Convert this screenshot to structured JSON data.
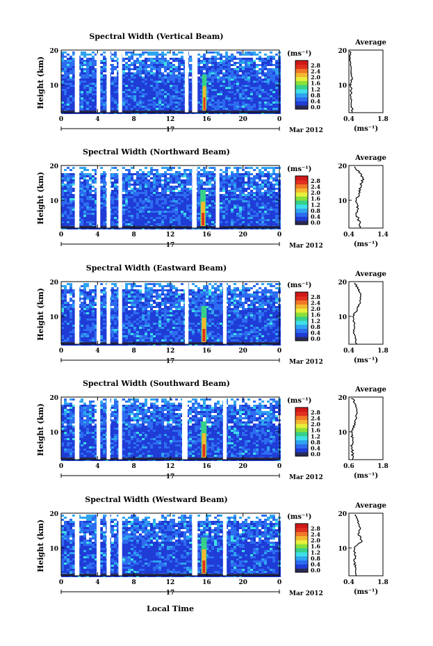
{
  "figure": {
    "xlabel": "Local Time",
    "date_label": "Mar 2012",
    "day_label": "17"
  },
  "colorbar": {
    "unit": "(ms⁻¹)",
    "ticks": [
      "0.0",
      "0.4",
      "0.8",
      "1.2",
      "1.6",
      "2.0",
      "2.4",
      "2.8"
    ],
    "colors": [
      "#2a2a55",
      "#1f3cd6",
      "#2d6cf0",
      "#2fa4f0",
      "#3fe0e8",
      "#36d08a",
      "#8ae03a",
      "#e8f03a",
      "#f4b830",
      "#f07828",
      "#e03020",
      "#d01818"
    ]
  },
  "chart_data": [
    {
      "type": "heatmap",
      "title": "Spectral Width (Vertical Beam)",
      "ylabel": "Height (km)",
      "xlim": [
        0,
        24
      ],
      "ylim": [
        2,
        20
      ],
      "xticks": [
        "0",
        "4",
        "8",
        "12",
        "16",
        "20",
        "0"
      ],
      "yticks": [
        "10",
        "20"
      ],
      "gaps_hours": [
        [
          1.5,
          2.0
        ],
        [
          3.9,
          4.3
        ],
        [
          5.0,
          5.4
        ],
        [
          6.3,
          6.7
        ],
        [
          13.6,
          14.0
        ],
        [
          14.4,
          15.0
        ]
      ],
      "hotspot_hours": [
        15.5,
        16.0
      ],
      "average": {
        "title": "Average",
        "xlabel": "(ms⁻¹)",
        "xlim": [
          0.4,
          1.8
        ],
        "xtick_labels": [
          "0.4",
          "1.8"
        ],
        "heights": [
          2,
          4,
          6,
          8,
          10,
          12,
          14,
          16,
          18,
          20
        ],
        "values": [
          0.55,
          0.52,
          0.48,
          0.5,
          0.47,
          0.52,
          0.46,
          0.48,
          0.45,
          0.44
        ]
      }
    },
    {
      "type": "heatmap",
      "title": "Spectral Width (Northward Beam)",
      "ylabel": "Height (km)",
      "xlim": [
        0,
        24
      ],
      "ylim": [
        2,
        20
      ],
      "xticks": [
        "0",
        "4",
        "8",
        "12",
        "16",
        "20",
        "0"
      ],
      "yticks": [
        "10",
        "20"
      ],
      "gaps_hours": [
        [
          1.5,
          2.0
        ],
        [
          3.9,
          4.3
        ],
        [
          5.0,
          5.4
        ],
        [
          6.3,
          6.7
        ],
        [
          14.4,
          14.9
        ],
        [
          17.0,
          17.4
        ]
      ],
      "hotspot_hours": [
        15.3,
        15.9
      ],
      "average": {
        "title": "Average",
        "xlabel": "(ms⁻¹)",
        "xlim": [
          0.4,
          1.4
        ],
        "xtick_labels": [
          "0.4",
          "1.4"
        ],
        "heights": [
          2,
          4,
          6,
          8,
          10,
          12,
          14,
          16,
          18,
          20
        ],
        "values": [
          0.75,
          0.7,
          0.62,
          0.66,
          0.6,
          0.7,
          0.75,
          0.8,
          0.72,
          0.55
        ]
      }
    },
    {
      "type": "heatmap",
      "title": "Spectral Width (Eastward Beam)",
      "ylabel": "Height (km)",
      "xlim": [
        0,
        24
      ],
      "ylim": [
        2,
        20
      ],
      "xticks": [
        "0",
        "4",
        "8",
        "12",
        "16",
        "20",
        "0"
      ],
      "yticks": [
        "10",
        "20"
      ],
      "gaps_hours": [
        [
          1.5,
          2.0
        ],
        [
          3.9,
          4.3
        ],
        [
          5.0,
          5.4
        ],
        [
          6.3,
          6.7
        ],
        [
          13.6,
          14.0
        ],
        [
          17.8,
          18.2
        ]
      ],
      "hotspot_hours": [
        15.4,
        16.0
      ],
      "average": {
        "title": "Average",
        "xlabel": "(ms⁻¹)",
        "xlim": [
          0.4,
          1.8
        ],
        "xtick_labels": [
          "0.4",
          "1.8"
        ],
        "heights": [
          2,
          4,
          6,
          8,
          10,
          12,
          14,
          16,
          18,
          20
        ],
        "values": [
          0.7,
          0.65,
          0.6,
          0.62,
          0.55,
          0.75,
          0.85,
          0.9,
          0.78,
          0.6
        ]
      }
    },
    {
      "type": "heatmap",
      "title": "Spectral Width (Southward Beam)",
      "ylabel": "Height (km)",
      "xlim": [
        0,
        24
      ],
      "ylim": [
        2,
        20
      ],
      "xticks": [
        "0",
        "4",
        "8",
        "12",
        "16",
        "20",
        "0"
      ],
      "yticks": [
        "10",
        "20"
      ],
      "gaps_hours": [
        [
          1.5,
          2.0
        ],
        [
          3.9,
          4.3
        ],
        [
          5.0,
          5.4
        ],
        [
          6.3,
          6.7
        ],
        [
          13.3,
          13.9
        ],
        [
          17.8,
          18.2
        ]
      ],
      "hotspot_hours": [
        15.4,
        16.0
      ],
      "average": {
        "title": "Average",
        "xlabel": "(ms⁻¹)",
        "xlim": [
          0.6,
          1.8
        ],
        "xtick_labels": [
          "0.6",
          "1.8"
        ],
        "heights": [
          2,
          4,
          6,
          8,
          10,
          12,
          14,
          16,
          18,
          20
        ],
        "values": [
          0.75,
          0.72,
          0.7,
          0.74,
          0.68,
          0.8,
          0.85,
          0.88,
          0.82,
          0.7
        ]
      }
    },
    {
      "type": "heatmap",
      "title": "Spectral Width (Westward Beam)",
      "ylabel": "Height (km)",
      "xlim": [
        0,
        24
      ],
      "ylim": [
        2,
        20
      ],
      "xticks": [
        "0",
        "4",
        "8",
        "12",
        "16",
        "20",
        "0"
      ],
      "yticks": [
        "10",
        "20"
      ],
      "gaps_hours": [
        [
          1.5,
          2.0
        ],
        [
          3.9,
          4.3
        ],
        [
          5.0,
          5.4
        ],
        [
          6.3,
          6.7
        ],
        [
          14.4,
          15.0
        ],
        [
          17.8,
          18.2
        ]
      ],
      "hotspot_hours": [
        15.4,
        16.0
      ],
      "average": {
        "title": "Average",
        "xlabel": "(ms⁻¹)",
        "xlim": [
          0.4,
          1.8
        ],
        "xtick_labels": [
          "0.4",
          "1.8"
        ],
        "heights": [
          2,
          4,
          6,
          8,
          10,
          12,
          14,
          16,
          18,
          20
        ],
        "values": [
          0.7,
          0.68,
          0.62,
          0.66,
          0.6,
          0.95,
          0.8,
          0.85,
          0.75,
          0.62
        ]
      }
    }
  ]
}
